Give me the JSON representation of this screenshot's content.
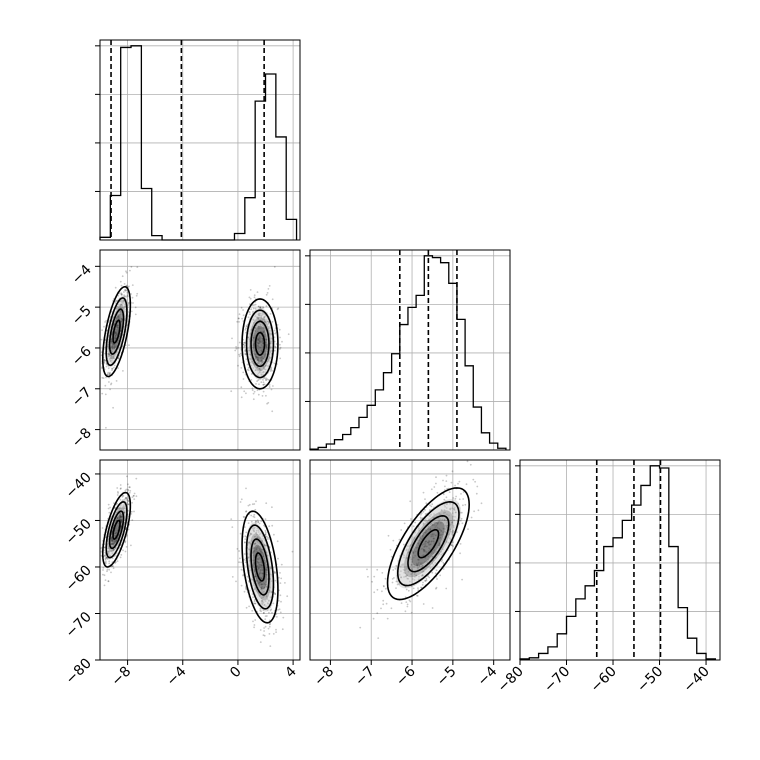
{
  "chart_data": {
    "type": "corner",
    "title": "",
    "parameters": [
      {
        "name": "",
        "range": [
          -10.0,
          4.5
        ],
        "ticks": [
          -8,
          -4,
          0,
          4
        ],
        "tick_labels": [
          "−8",
          "−4",
          "0",
          "4"
        ]
      },
      {
        "name": "",
        "range": [
          -8.5,
          -3.6
        ],
        "ticks": [
          -8,
          -7,
          -6,
          -5,
          -4
        ],
        "tick_labels": [
          "−8",
          "−7",
          "−6",
          "−5",
          "−4"
        ]
      },
      {
        "name": "",
        "range": [
          -80,
          -37
        ],
        "ticks": [
          -80,
          -70,
          -60,
          -50,
          -40
        ],
        "tick_labels": [
          "−80",
          "−70",
          "−60",
          "−50",
          "−40"
        ]
      }
    ],
    "marginals": [
      {
        "param": 0,
        "bin_edges": [
          -10.0,
          -9.25,
          -8.5,
          -7.75,
          -7.0,
          -6.25,
          -5.5,
          -4.75,
          -4.0,
          -3.25,
          -2.5,
          -1.75,
          -1.0,
          -0.25,
          0.5,
          1.25,
          2.0,
          2.75,
          3.5,
          4.25
        ],
        "counts": [
          0.05,
          0.82,
          3.55,
          3.58,
          0.95,
          0.08,
          0,
          0,
          0,
          0,
          0,
          0,
          0,
          0.12,
          0.78,
          2.56,
          3.06,
          1.9,
          0.38
        ],
        "quantiles": [
          -9.2,
          -4.1,
          1.9
        ]
      },
      {
        "param": 1,
        "bin_edges": [
          -8.5,
          -8.3,
          -8.1,
          -7.9,
          -7.7,
          -7.5,
          -7.3,
          -7.1,
          -6.9,
          -6.7,
          -6.5,
          -6.3,
          -6.1,
          -5.9,
          -5.7,
          -5.5,
          -5.3,
          -5.1,
          -4.9,
          -4.7,
          -4.5,
          -4.3,
          -4.1,
          -3.9,
          -3.7
        ],
        "counts": [
          0.05,
          0.15,
          0.35,
          0.6,
          0.9,
          1.3,
          1.9,
          2.6,
          3.5,
          4.5,
          5.6,
          7.3,
          8.3,
          9.0,
          11.3,
          11.2,
          10.9,
          9.7,
          7.6,
          4.9,
          2.5,
          1.0,
          0.4,
          0.1
        ],
        "quantiles": [
          -6.3,
          -5.6,
          -4.9
        ]
      },
      {
        "param": 2,
        "bin_edges": [
          -80,
          -78,
          -76,
          -74,
          -72,
          -70,
          -68,
          -66,
          -64,
          -62,
          -60,
          -58,
          -56,
          -54,
          -52,
          -50,
          -48,
          -46,
          -44,
          -42,
          -40,
          -38
        ],
        "counts": [
          0.05,
          0.1,
          0.3,
          0.6,
          1.2,
          2.0,
          2.8,
          3.4,
          4.1,
          5.2,
          5.6,
          6.4,
          7.1,
          8.0,
          8.9,
          8.8,
          5.2,
          2.4,
          1.0,
          0.3,
          0.05
        ],
        "quantiles": [
          -63.5,
          -55.5,
          -49.8
        ]
      }
    ],
    "joints": [
      {
        "x_param": 0,
        "y_param": 1,
        "modes": [
          {
            "center": [
              -8.8,
              -5.6
            ],
            "spread": [
              0.5,
              0.55
            ],
            "rho": 0.6
          },
          {
            "center": [
              1.6,
              -5.9
            ],
            "spread": [
              0.65,
              0.55
            ],
            "rho": 0.0
          }
        ]
      },
      {
        "x_param": 0,
        "y_param": 2,
        "modes": [
          {
            "center": [
              -8.8,
              -52
            ],
            "spread": [
              0.5,
              4.0
            ],
            "rho": 0.65
          },
          {
            "center": [
              1.6,
              -60
            ],
            "spread": [
              0.65,
              6.0
            ],
            "rho": -0.4
          }
        ]
      },
      {
        "x_param": 1,
        "y_param": 2,
        "modes": [
          {
            "center": [
              -5.6,
              -55
            ],
            "spread": [
              0.5,
              6.0
            ],
            "rho": 0.7
          }
        ]
      }
    ],
    "grid": true,
    "contour_levels_sigma": [
      0.5,
      1.0,
      1.5,
      2.0
    ]
  }
}
